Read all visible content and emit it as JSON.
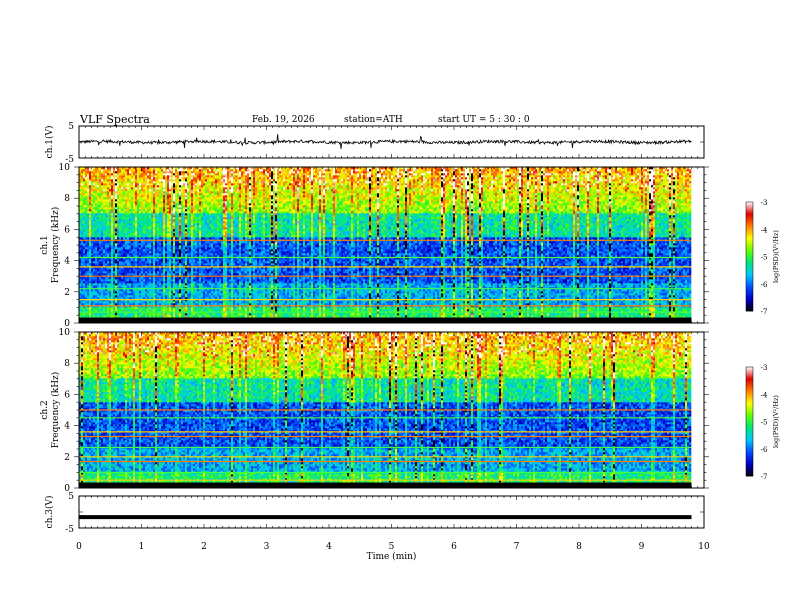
{
  "header": {
    "title": "VLF  Spectra",
    "date": "Feb. 19, 2026",
    "station": "station=ATH",
    "start_ut": "start  UT  =   5  : 30 : 0"
  },
  "chart_data": [
    {
      "type": "line",
      "panel": "ch1-waveform",
      "ylabel": "ch.1(V)",
      "ylim": [
        -5,
        5
      ],
      "yticks": [
        "5",
        "-5"
      ],
      "xlim": [
        0,
        10
      ],
      "series": [
        {
          "values_note": "",
          "x": [
            0,
            9.8
          ],
          "y": [
            0,
            0
          ]
        }
      ]
    },
    {
      "type": "heatmap",
      "panel": "ch1-spectrogram",
      "ylabel": "ch.1\nFrequency  (kHz)",
      "ylabel_lines": [
        "ch.1",
        "Frequency  (kHz)"
      ],
      "ylim": [
        0,
        10
      ],
      "yticks": [
        "0",
        "2",
        "4",
        "6",
        "8",
        "10"
      ],
      "xlim": [
        0,
        9.8
      ],
      "colorbar": {
        "label": "log(PSD)(V²/Hz)",
        "range": [
          -7,
          -3
        ],
        "ticks": [
          "-3",
          "-4",
          "-5",
          "-6",
          "-7"
        ]
      },
      "bands_khz": [
        0.3,
        0.7,
        1.1,
        1.5,
        2.2,
        3.0,
        3.6,
        4.2,
        5.3
      ]
    },
    {
      "type": "heatmap",
      "panel": "ch2-spectrogram",
      "ylabel_lines": [
        "ch.2",
        "Frequency  (kHz)"
      ],
      "ylim": [
        0,
        10
      ],
      "yticks": [
        "0",
        "2",
        "4",
        "6",
        "8",
        "10"
      ],
      "xlim": [
        0,
        9.8
      ],
      "colorbar": {
        "label": "log(PSD)(V²/Hz)",
        "range": [
          -7,
          -3
        ],
        "ticks": [
          "-3",
          "-4",
          "-5",
          "-6",
          "-7"
        ]
      },
      "bands_khz": [
        0.5,
        1.0,
        1.7,
        2.0,
        2.6,
        3.3,
        3.6,
        4.5,
        5.0
      ]
    },
    {
      "type": "line",
      "panel": "ch3-waveform",
      "ylabel": "ch.3(V)",
      "ylim": [
        -5,
        5
      ],
      "yticks": [
        "5",
        "-5"
      ],
      "xlim": [
        0,
        10
      ],
      "series": [
        {
          "x": [
            0,
            9.8
          ],
          "y": [
            -1.6,
            -1.6
          ]
        }
      ]
    }
  ],
  "xaxis": {
    "label": "Time  (min)",
    "ticks": [
      "0",
      "1",
      "2",
      "3",
      "4",
      "5",
      "6",
      "7",
      "8",
      "9",
      "10"
    ],
    "range": [
      0,
      10
    ]
  },
  "colors": {
    "colormap": [
      "#000000",
      "#0000c8",
      "#0050ff",
      "#00c8ff",
      "#00e878",
      "#60ff00",
      "#ffff00",
      "#ff8000",
      "#e00000",
      "#ffffff"
    ]
  }
}
